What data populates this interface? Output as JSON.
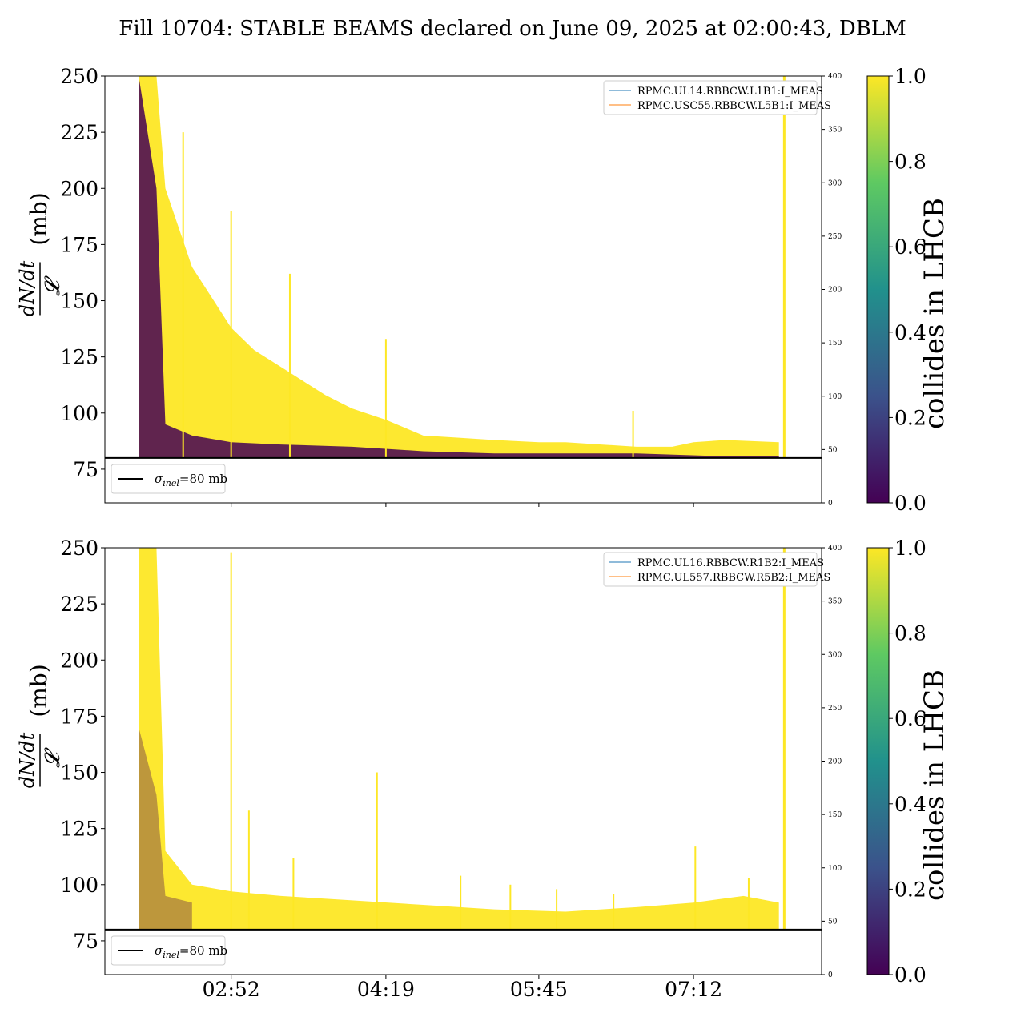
{
  "chart_data": {
    "type": "line",
    "title": "Fill 10704: STABLE BEAMS declared on June 09, 2025 at 02:00:43, DBLM",
    "x_tick_labels": [
      "02:52",
      "04:19",
      "05:45",
      "07:12"
    ],
    "x_tick_minutes": [
      172,
      259,
      345,
      432
    ],
    "x_range_minutes": [
      101,
      504
    ],
    "stable_beams_start_minutes": 120,
    "data_end_minutes": 483,
    "ylabel": "dN/dt / 𝓛 (mb)",
    "ylim": [
      60,
      250
    ],
    "yticks": [
      75,
      100,
      125,
      150,
      175,
      200,
      225,
      250
    ],
    "y2lim": [
      0,
      400
    ],
    "y2ticks": [
      0,
      50,
      100,
      150,
      200,
      250,
      300,
      350,
      400
    ],
    "grid": false,
    "reference_line": {
      "value": 80,
      "label_sigma": "σ",
      "label_sub": "inel",
      "label_rest": "=80 mb"
    },
    "colorbar": {
      "label": "collides in LHCB",
      "range": [
        0.0,
        1.0
      ],
      "ticks": [
        "0.0",
        "0.2",
        "0.4",
        "0.6",
        "0.8",
        "1.0"
      ],
      "colormap": "viridis",
      "colors": [
        "#440154",
        "#3b528b",
        "#21918c",
        "#5ec962",
        "#fde725"
      ]
    },
    "panels": [
      {
        "name": "beam1",
        "current_legend": [
          "RPMC.UL14.RBBCW.L1B1:I_MEAS",
          "RPMC.USC55.RBBCW.L5B1:I_MEAS"
        ],
        "legend_colors": [
          "#1f77b4",
          "#ff7f0e"
        ],
        "envelope_colliding": {
          "x": [
            120,
            130,
            135,
            150,
            172,
            185,
            205,
            225,
            240,
            259,
            280,
            300,
            320,
            345,
            360,
            380,
            400,
            420,
            432,
            450,
            480
          ],
          "y": [
            250,
            250,
            200,
            165,
            138,
            128,
            118,
            108,
            102,
            97,
            90,
            89,
            88,
            87,
            87,
            86,
            85,
            85,
            87,
            88,
            87
          ]
        },
        "envelope_noncolliding": {
          "x": [
            120,
            130,
            135,
            150,
            172,
            200,
            240,
            280,
            320,
            360,
            400,
            440,
            480
          ],
          "y": [
            250,
            200,
            95,
            90,
            87,
            86,
            85,
            83,
            82,
            82,
            82,
            81,
            81
          ]
        },
        "spikes": [
          {
            "x": 145,
            "y": 225
          },
          {
            "x": 172,
            "y": 190
          },
          {
            "x": 205,
            "y": 162
          },
          {
            "x": 259,
            "y": 133
          },
          {
            "x": 398,
            "y": 101
          },
          {
            "x": 483,
            "y": 250
          }
        ]
      },
      {
        "name": "beam2",
        "current_legend": [
          "RPMC.UL16.RBBCW.R1B2:I_MEAS",
          "RPMC.UL557.RBBCW.R5B2:I_MEAS"
        ],
        "legend_colors": [
          "#1f77b4",
          "#ff7f0e"
        ],
        "envelope_colliding": {
          "x": [
            120,
            130,
            135,
            150,
            172,
            200,
            240,
            280,
            320,
            360,
            400,
            432,
            460,
            480
          ],
          "y": [
            250,
            250,
            115,
            100,
            97,
            95,
            93,
            91,
            89,
            88,
            90,
            92,
            95,
            92
          ]
        },
        "envelope_noncolliding": {
          "x": [
            120,
            130,
            135,
            150
          ],
          "y": [
            170,
            140,
            95,
            92
          ]
        },
        "spikes": [
          {
            "x": 172,
            "y": 248
          },
          {
            "x": 182,
            "y": 133
          },
          {
            "x": 207,
            "y": 112
          },
          {
            "x": 254,
            "y": 150
          },
          {
            "x": 301,
            "y": 104
          },
          {
            "x": 329,
            "y": 100
          },
          {
            "x": 355,
            "y": 98
          },
          {
            "x": 387,
            "y": 96
          },
          {
            "x": 433,
            "y": 117
          },
          {
            "x": 463,
            "y": 103
          },
          {
            "x": 483,
            "y": 250
          }
        ]
      }
    ]
  }
}
